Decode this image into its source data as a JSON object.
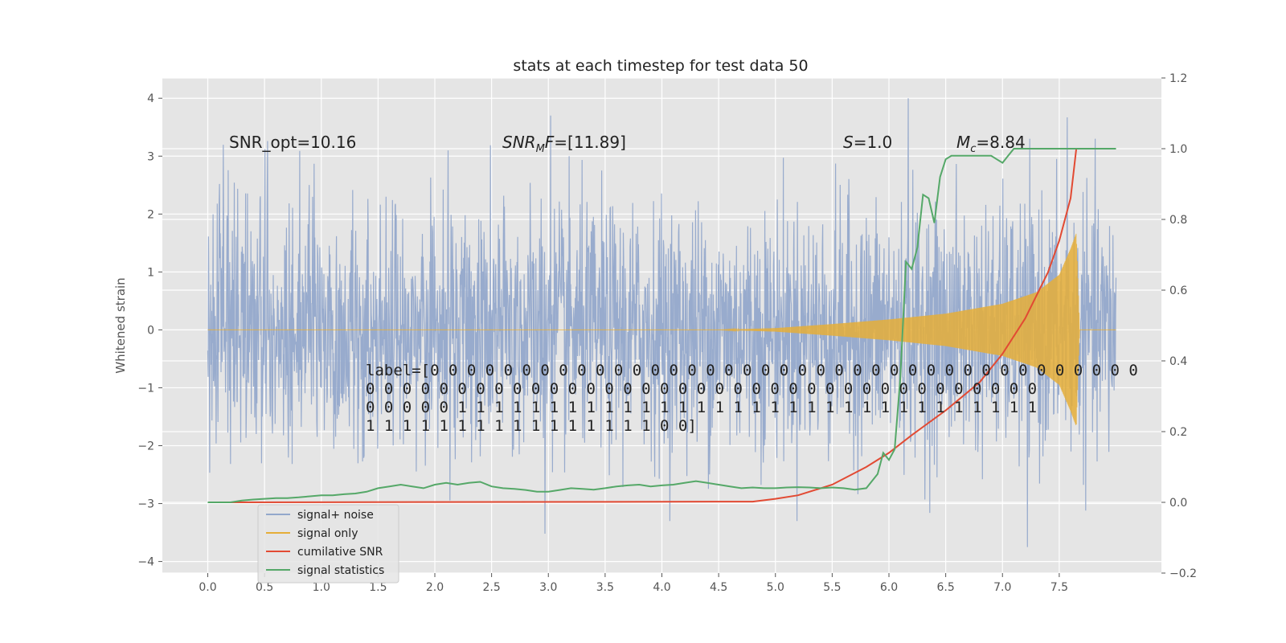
{
  "chart_data": {
    "type": "line",
    "title": "stats at each timestep for test data 50",
    "ylabel": "Whitened strain",
    "xlim": [
      -0.4,
      8.4
    ],
    "ylim": [
      -4.2,
      4.35
    ],
    "y2lim": [
      -0.2,
      1.2
    ],
    "x_ticks": [
      "0.0",
      "0.5",
      "1.0",
      "1.5",
      "2.0",
      "2.5",
      "3.0",
      "3.5",
      "4.0",
      "4.5",
      "5.0",
      "5.5",
      "6.0",
      "6.5",
      "7.0",
      "7.5"
    ],
    "y_ticks": [
      "−4",
      "−3",
      "−2",
      "−1",
      "0",
      "1",
      "2",
      "3",
      "4"
    ],
    "y2_ticks": [
      "−0.2",
      "0.0",
      "0.2",
      "0.4",
      "0.6",
      "0.8",
      "1.0",
      "1.2"
    ],
    "grid": true,
    "legend_position": "lower-left",
    "series": [
      {
        "name": "signal+ noise",
        "color": "#93a8cb",
        "axis": "left",
        "description_values": {
          "x_range": [
            0.0,
            8.0
          ],
          "amplitude_typ": 2.0,
          "peaks": [
            [
              6.17,
              4.0
            ],
            [
              7.57,
              3.67
            ],
            [
              3.02,
              3.7
            ],
            [
              7.22,
              -3.75
            ],
            [
              2.97,
              -3.52
            ]
          ]
        }
      },
      {
        "name": "signal only",
        "color": "#e5ae38",
        "axis": "left",
        "envelope": {
          "x": [
            0.0,
            4.5,
            5.0,
            5.5,
            6.0,
            6.5,
            7.0,
            7.3,
            7.5,
            7.6,
            7.65,
            7.68,
            8.0
          ],
          "amp": [
            0.0,
            0.0,
            0.03,
            0.1,
            0.18,
            0.28,
            0.45,
            0.65,
            0.95,
            1.4,
            1.67,
            0.0,
            0.0
          ]
        }
      },
      {
        "name": "cumilative SNR",
        "color": "#e24a33",
        "axis": "right",
        "x": [
          0.0,
          4.8,
          5.0,
          5.2,
          5.5,
          5.8,
          6.0,
          6.2,
          6.5,
          6.8,
          7.0,
          7.2,
          7.4,
          7.5,
          7.6,
          7.65,
          8.0
        ],
        "y": [
          0.0,
          0.002,
          0.01,
          0.02,
          0.05,
          0.1,
          0.14,
          0.19,
          0.26,
          0.34,
          0.42,
          0.52,
          0.65,
          0.74,
          0.86,
          1.0,
          1.0
        ]
      },
      {
        "name": "signal statistics",
        "color": "#55a868",
        "axis": "right",
        "x": [
          0.0,
          0.2,
          0.3,
          0.4,
          0.5,
          0.6,
          0.7,
          0.8,
          0.9,
          1.0,
          1.1,
          1.2,
          1.3,
          1.4,
          1.5,
          1.6,
          1.7,
          1.8,
          1.9,
          2.0,
          2.1,
          2.2,
          2.3,
          2.4,
          2.5,
          2.6,
          2.7,
          2.8,
          2.9,
          3.0,
          3.1,
          3.2,
          3.3,
          3.4,
          3.5,
          3.6,
          3.7,
          3.8,
          3.9,
          4.0,
          4.1,
          4.2,
          4.3,
          4.4,
          4.5,
          4.6,
          4.7,
          4.8,
          4.9,
          5.0,
          5.1,
          5.2,
          5.3,
          5.4,
          5.5,
          5.6,
          5.7,
          5.8,
          5.85,
          5.9,
          5.95,
          6.0,
          6.05,
          6.1,
          6.15,
          6.2,
          6.25,
          6.3,
          6.35,
          6.4,
          6.45,
          6.5,
          6.55,
          6.6,
          6.7,
          6.8,
          6.9,
          6.95,
          7.0,
          7.05,
          7.1,
          7.2,
          7.3,
          7.4,
          7.5,
          7.6,
          7.7,
          8.0
        ],
        "y": [
          0.0,
          0.0,
          0.005,
          0.008,
          0.01,
          0.012,
          0.012,
          0.014,
          0.017,
          0.02,
          0.02,
          0.023,
          0.025,
          0.03,
          0.04,
          0.045,
          0.05,
          0.045,
          0.04,
          0.05,
          0.055,
          0.05,
          0.055,
          0.058,
          0.045,
          0.04,
          0.038,
          0.035,
          0.03,
          0.03,
          0.035,
          0.04,
          0.038,
          0.036,
          0.04,
          0.045,
          0.048,
          0.05,
          0.045,
          0.048,
          0.05,
          0.055,
          0.06,
          0.055,
          0.05,
          0.045,
          0.04,
          0.042,
          0.04,
          0.04,
          0.042,
          0.043,
          0.042,
          0.04,
          0.042,
          0.04,
          0.036,
          0.04,
          0.06,
          0.08,
          0.14,
          0.12,
          0.15,
          0.35,
          0.68,
          0.66,
          0.72,
          0.87,
          0.86,
          0.79,
          0.92,
          0.97,
          0.98,
          0.98,
          0.98,
          0.98,
          0.98,
          0.97,
          0.96,
          0.98,
          1.0,
          1.0,
          1.0,
          1.0,
          1.0,
          1.0,
          1.0,
          1.0
        ]
      }
    ],
    "annotations": {
      "snr_opt": "SNR_opt=10.16",
      "snr_mf": "=[11.89]",
      "s_stat": "=1.0",
      "mc": "=8.84",
      "label_lines": [
        "label=[0 0 0 0 0 0 0 0 0 0 0 0 0 0 0 0 0 0 0 0 0 0 0 0 0 0 0 0 0 0 0 0 0 0 0 0 0 0 0",
        " 0 0 0 0 0 0 0 0 0 0 0 0 0 0 0 0 0 0 0 0 0 0 0 0 0 0 0 0 0 0 0 0 0 0 0 0 0",
        " 0 0 0 0 0 1 1 1 1 1 1 1 1 1 1 1 1 1 1 1 1 1 1 1 1 1 1 1 1 1 1 1 1 1 1 1 1",
        " 1 1 1 1 1 1 1 1 1 1 1 1 1 1 1 1 0 0]"
      ]
    }
  }
}
